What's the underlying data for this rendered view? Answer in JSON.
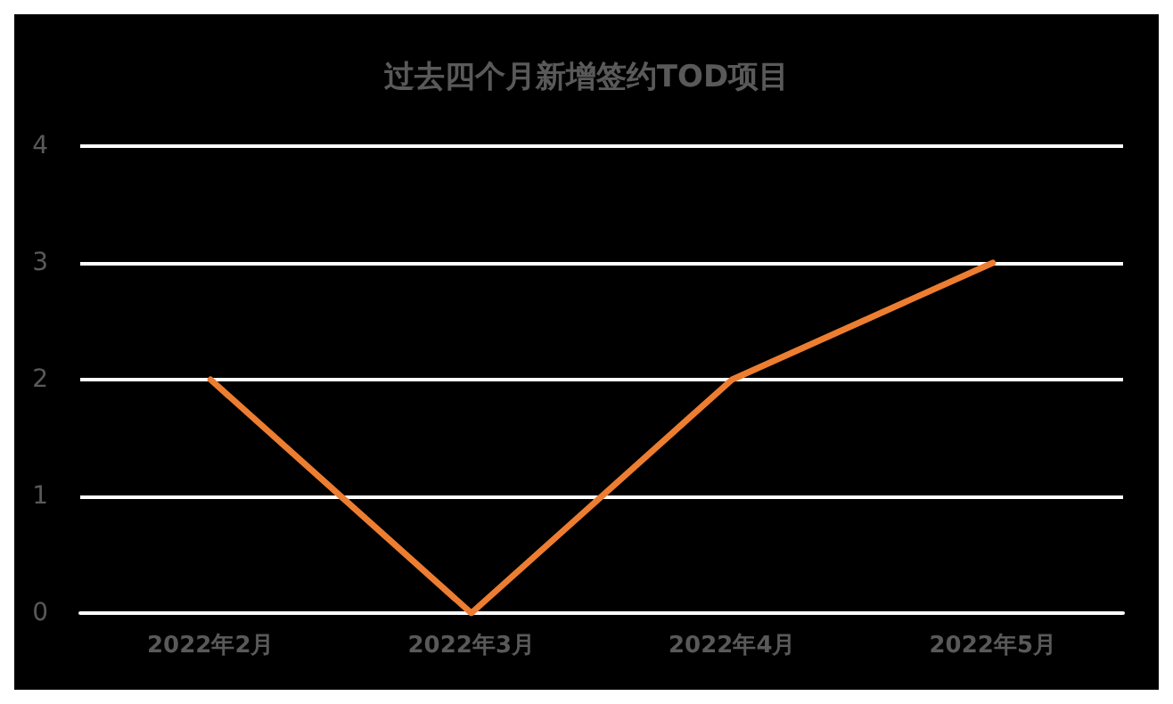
{
  "chart_data": {
    "type": "line",
    "title": "过去四个月新增签约TOD项目",
    "categories": [
      "2022年2月",
      "2022年3月",
      "2022年4月",
      "2022年5月"
    ],
    "series": [
      {
        "color": "#ed7d31",
        "values": [
          2,
          0,
          2,
          3
        ]
      }
    ],
    "ylim": [
      0,
      4
    ],
    "yticks": [
      0,
      1,
      2,
      3,
      4
    ],
    "grid": "y",
    "marker": "none",
    "line_style": "solid"
  }
}
